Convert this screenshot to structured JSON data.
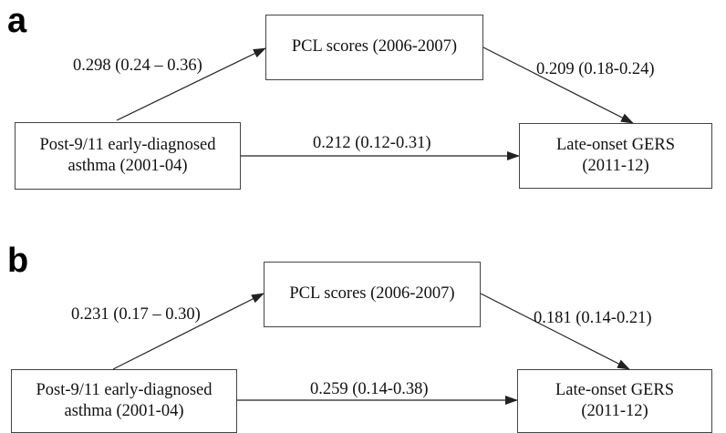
{
  "panels": [
    {
      "letter": "a",
      "mediator": "PCL scores (2006-2007)",
      "exposure": {
        "line1": "Post-9/11 early-diagnosed",
        "line2": "asthma (2001-04)"
      },
      "outcome": {
        "line1": "Late-onset GERS",
        "line2": "(2011-12)"
      },
      "path_exposure_to_mediator": "0.298 (0.24 – 0.36)",
      "path_mediator_to_outcome": "0.209 (0.18-0.24)",
      "path_direct": "0.212 (0.12-0.31)"
    },
    {
      "letter": "b",
      "mediator": "PCL scores (2006-2007)",
      "exposure": {
        "line1": "Post-9/11 early-diagnosed",
        "line2": "asthma (2001-04)"
      },
      "outcome": {
        "line1": "Late-onset GERS",
        "line2": "(2011-12)"
      },
      "path_exposure_to_mediator": "0.231 (0.17 – 0.30)",
      "path_mediator_to_outcome": "0.181 (0.14-0.21)",
      "path_direct": "0.259 (0.14-0.38)"
    }
  ],
  "colors": {
    "line": "#222222",
    "box_border": "#444444",
    "text": "#111111"
  }
}
